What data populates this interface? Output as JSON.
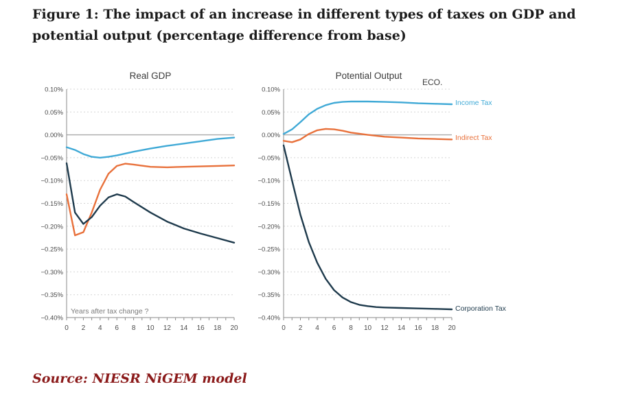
{
  "figure": {
    "title": "Figure 1: The impact of an increase in different types of taxes on GDP and potential output (percentage difference from base)",
    "source": "Source: NIESR NiGEM model"
  },
  "chart_data": [
    {
      "type": "line",
      "title": "Real GDP",
      "xlabel": "",
      "ylabel": "",
      "xlim": [
        0,
        20
      ],
      "ylim": [
        -0.4,
        0.1
      ],
      "x_ticks": [
        "0",
        "2",
        "4",
        "6",
        "8",
        "10",
        "12",
        "14",
        "16",
        "18",
        "20"
      ],
      "y_ticks": [
        "0.10%",
        "0.05%",
        "0.00%",
        "−0.05%",
        "−0.10%",
        "−0.15%",
        "−0.20%",
        "−0.25%",
        "−0.30%",
        "−0.35%",
        "−0.40%"
      ],
      "annotation": "Years after tax change ?",
      "series": [
        {
          "name": "Income Tax",
          "color": "#3fa9d6",
          "x": [
            0,
            1,
            2,
            3,
            4,
            5,
            6,
            8,
            10,
            12,
            14,
            16,
            18,
            20
          ],
          "values": [
            -0.027,
            -0.033,
            -0.042,
            -0.048,
            -0.05,
            -0.048,
            -0.045,
            -0.037,
            -0.03,
            -0.024,
            -0.019,
            -0.014,
            -0.009,
            -0.006
          ]
        },
        {
          "name": "Indirect Tax",
          "color": "#e8703a",
          "x": [
            0,
            1,
            2,
            3,
            4,
            5,
            6,
            7,
            8,
            10,
            12,
            14,
            16,
            18,
            20
          ],
          "values": [
            -0.13,
            -0.22,
            -0.213,
            -0.17,
            -0.12,
            -0.085,
            -0.068,
            -0.063,
            -0.065,
            -0.07,
            -0.071,
            -0.07,
            -0.069,
            -0.068,
            -0.067
          ]
        },
        {
          "name": "Corporation Tax",
          "color": "#1e3a4c",
          "x": [
            0,
            1,
            2,
            3,
            4,
            5,
            6,
            7,
            8,
            10,
            12,
            14,
            16,
            18,
            20
          ],
          "values": [
            -0.062,
            -0.17,
            -0.195,
            -0.18,
            -0.155,
            -0.137,
            -0.13,
            -0.135,
            -0.147,
            -0.17,
            -0.19,
            -0.205,
            -0.216,
            -0.226,
            -0.236
          ]
        }
      ]
    },
    {
      "type": "line",
      "title": "Potential Output",
      "xlabel": "",
      "ylabel": "",
      "xlim": [
        0,
        20
      ],
      "ylim": [
        -0.4,
        0.1
      ],
      "x_ticks": [
        "0",
        "2",
        "4",
        "6",
        "8",
        "10",
        "12",
        "14",
        "16",
        "18",
        "20"
      ],
      "y_ticks": [
        "0.10%",
        "0.05%",
        "0.00%",
        "−0.05%",
        "−0.10%",
        "−0.15%",
        "−0.20%",
        "−0.25%",
        "−0.30%",
        "−0.35%",
        "−0.40%"
      ],
      "annotation": "ECO.",
      "series": [
        {
          "name": "Income Tax",
          "color": "#3fa9d6",
          "x": [
            0,
            1,
            2,
            3,
            4,
            5,
            6,
            7,
            8,
            9,
            10,
            12,
            14,
            16,
            18,
            20
          ],
          "values": [
            0.002,
            0.012,
            0.028,
            0.045,
            0.057,
            0.065,
            0.07,
            0.072,
            0.073,
            0.073,
            0.073,
            0.072,
            0.071,
            0.069,
            0.068,
            0.067
          ]
        },
        {
          "name": "Indirect Tax",
          "color": "#e8703a",
          "x": [
            0,
            1,
            2,
            3,
            4,
            5,
            6,
            7,
            8,
            10,
            12,
            14,
            16,
            18,
            20
          ],
          "values": [
            -0.013,
            -0.016,
            -0.01,
            0.002,
            0.01,
            0.013,
            0.012,
            0.009,
            0.005,
            0.0,
            -0.004,
            -0.006,
            -0.008,
            -0.009,
            -0.01
          ]
        },
        {
          "name": "Corporation Tax",
          "color": "#1e3a4c",
          "x": [
            0,
            1,
            2,
            3,
            4,
            5,
            6,
            7,
            8,
            9,
            10,
            11,
            12,
            14,
            16,
            18,
            20
          ],
          "values": [
            -0.023,
            -0.1,
            -0.175,
            -0.235,
            -0.28,
            -0.315,
            -0.34,
            -0.356,
            -0.366,
            -0.372,
            -0.375,
            -0.377,
            -0.378,
            -0.379,
            -0.38,
            -0.381,
            -0.382
          ]
        }
      ]
    }
  ]
}
